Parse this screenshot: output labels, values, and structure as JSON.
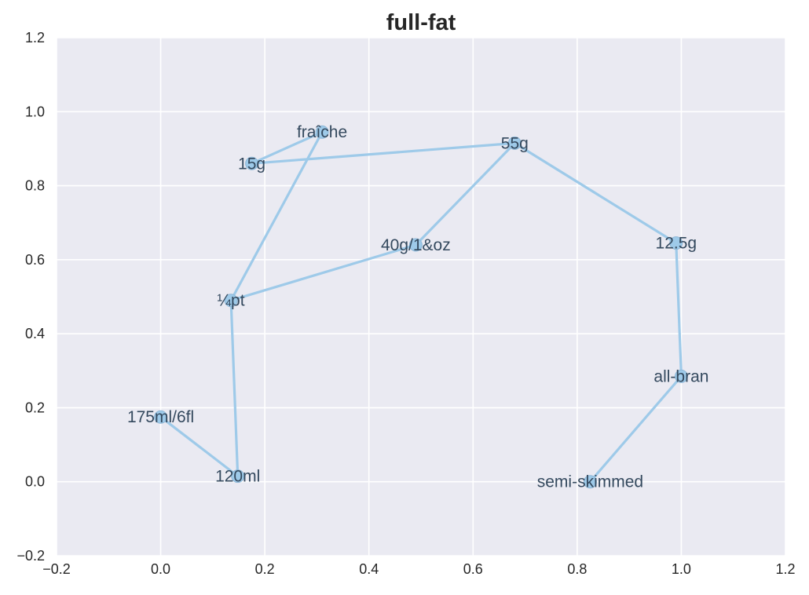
{
  "chart_data": {
    "type": "line",
    "title": "full-fat",
    "xlabel": "",
    "ylabel": "",
    "xlim": [
      -0.2,
      1.2
    ],
    "ylim": [
      -0.2,
      1.2
    ],
    "xticks": [
      "−0.2",
      "0.0",
      "0.2",
      "0.4",
      "0.6",
      "0.8",
      "1.0",
      "1.2"
    ],
    "yticks": [
      "−0.2",
      "0.0",
      "0.2",
      "0.4",
      "0.6",
      "0.8",
      "1.0",
      "1.2"
    ],
    "xtick_values": [
      -0.2,
      0.0,
      0.2,
      0.4,
      0.6,
      0.8,
      1.0,
      1.2
    ],
    "ytick_values": [
      -0.2,
      0.0,
      0.2,
      0.4,
      0.6,
      0.8,
      1.0,
      1.2
    ],
    "grid": true,
    "line_color": "#9ecae9",
    "marker_color": "#9ecae9",
    "label_color": "#34495e",
    "background_color": "#eaeaf2",
    "points": [
      {
        "label": "175ml/6fl",
        "x": 0.0,
        "y": 0.175
      },
      {
        "label": "120ml",
        "x": 0.148,
        "y": 0.015
      },
      {
        "label": "¼pt",
        "x": 0.135,
        "y": 0.49
      },
      {
        "label": "fraîche",
        "x": 0.31,
        "y": 0.945
      },
      {
        "label": "15g",
        "x": 0.175,
        "y": 0.86
      },
      {
        "label": "55g",
        "x": 0.68,
        "y": 0.915
      },
      {
        "label": "40g/1&oz",
        "x": 0.49,
        "y": 0.64
      },
      {
        "label": "¼pt",
        "x": 0.135,
        "y": 0.49
      }
    ],
    "path_order": [
      {
        "label": "175ml/6fl",
        "x": 0.0,
        "y": 0.175
      },
      {
        "label": "120ml",
        "x": 0.148,
        "y": 0.015
      },
      {
        "label": "¼pt",
        "x": 0.135,
        "y": 0.49
      },
      {
        "label": "fraîche",
        "x": 0.31,
        "y": 0.945
      },
      {
        "label": "15g",
        "x": 0.175,
        "y": 0.86
      },
      {
        "label": "55g",
        "x": 0.68,
        "y": 0.915
      },
      {
        "label": "40g/1&oz",
        "x": 0.49,
        "y": 0.64
      },
      {
        "label": "¼pt",
        "x": 0.135,
        "y": 0.49
      }
    ],
    "series": [
      {
        "points": [
          {
            "label": "175ml/6fl",
            "x": 0.0,
            "y": 0.175
          },
          {
            "label": "120ml",
            "x": 0.148,
            "y": 0.015
          },
          {
            "label": "¼pt",
            "x": 0.135,
            "y": 0.49
          },
          {
            "label": "fraîche",
            "x": 0.31,
            "y": 0.945
          },
          {
            "label": "15g",
            "x": 0.175,
            "y": 0.86
          },
          {
            "label": "55g",
            "x": 0.68,
            "y": 0.915
          },
          {
            "label": "12.5g",
            "x": 0.99,
            "y": 0.645
          },
          {
            "label": "all-bran",
            "x": 1.0,
            "y": 0.285
          },
          {
            "label": "semi-skimmed",
            "x": 0.825,
            "y": 0.0
          }
        ]
      }
    ],
    "branch": [
      {
        "label": "55g",
        "x": 0.68,
        "y": 0.915
      },
      {
        "label": "40g/1&oz",
        "x": 0.49,
        "y": 0.64
      },
      {
        "label": "¼pt",
        "x": 0.135,
        "y": 0.49
      }
    ]
  }
}
